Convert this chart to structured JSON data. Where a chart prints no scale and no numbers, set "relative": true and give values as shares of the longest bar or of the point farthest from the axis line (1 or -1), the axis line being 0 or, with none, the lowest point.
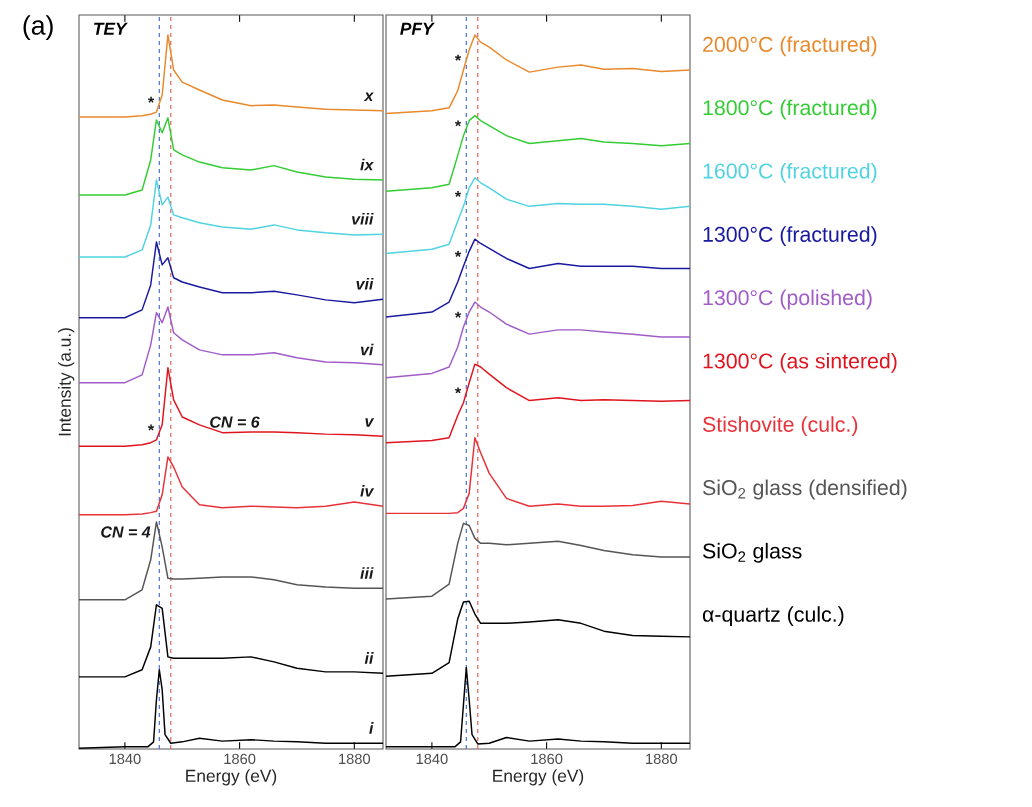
{
  "chart_data": [
    {
      "type": "line",
      "relative": true,
      "title": "TEY",
      "xlabel": "Energy (eV)",
      "ylabel": "Intensity (a.u.)",
      "xlim": [
        1832,
        1885
      ],
      "xticks": [
        1840,
        1860,
        1880
      ],
      "x": [
        1832,
        1840,
        1843,
        1844.5,
        1845.5,
        1846.5,
        1847.5,
        1848.5,
        1850,
        1853,
        1857,
        1862,
        1866,
        1870,
        1875,
        1880,
        1885
      ],
      "series": [
        {
          "name": "x",
          "color": "#e8892b",
          "values": [
            0.885,
            0.885,
            0.887,
            0.889,
            0.892,
            0.916,
            1.0,
            0.951,
            0.934,
            0.923,
            0.909,
            0.901,
            0.902,
            0.899,
            0.896,
            0.895,
            0.894
          ]
        },
        {
          "name": "ix",
          "color": "#33cc33",
          "values": [
            0.776,
            0.776,
            0.783,
            0.825,
            0.881,
            0.863,
            0.884,
            0.839,
            0.832,
            0.822,
            0.814,
            0.811,
            0.817,
            0.808,
            0.801,
            0.798,
            0.797
          ]
        },
        {
          "name": "viii",
          "color": "#4fd3e0",
          "values": [
            0.689,
            0.689,
            0.699,
            0.734,
            0.797,
            0.762,
            0.773,
            0.748,
            0.744,
            0.737,
            0.731,
            0.728,
            0.734,
            0.727,
            0.723,
            0.72,
            0.721
          ]
        },
        {
          "name": "vii",
          "color": "#1a1aa0",
          "values": [
            0.604,
            0.604,
            0.615,
            0.65,
            0.71,
            0.678,
            0.688,
            0.66,
            0.654,
            0.647,
            0.639,
            0.639,
            0.641,
            0.636,
            0.629,
            0.625,
            0.63
          ]
        },
        {
          "name": "vi",
          "color": "#a05cc8",
          "values": [
            0.513,
            0.513,
            0.524,
            0.566,
            0.611,
            0.597,
            0.619,
            0.583,
            0.573,
            0.559,
            0.552,
            0.552,
            0.555,
            0.548,
            0.542,
            0.541,
            0.538
          ]
        },
        {
          "name": "v",
          "color": "#e0141e",
          "values": [
            0.424,
            0.424,
            0.426,
            0.429,
            0.433,
            0.454,
            0.534,
            0.489,
            0.465,
            0.454,
            0.443,
            0.444,
            0.444,
            0.443,
            0.441,
            0.44,
            0.438
          ]
        },
        {
          "name": "iv",
          "color": "#e8323a",
          "values": [
            0.328,
            0.328,
            0.329,
            0.331,
            0.333,
            0.356,
            0.409,
            0.395,
            0.367,
            0.342,
            0.338,
            0.34,
            0.339,
            0.338,
            0.34,
            0.346,
            0.34
          ]
        },
        {
          "name": "iii",
          "color": "#555555",
          "values": [
            0.209,
            0.209,
            0.223,
            0.265,
            0.318,
            0.283,
            0.239,
            0.238,
            0.238,
            0.239,
            0.241,
            0.241,
            0.237,
            0.23,
            0.227,
            0.225,
            0.225
          ]
        },
        {
          "name": "ii",
          "color": "#000000",
          "values": [
            0.101,
            0.101,
            0.111,
            0.143,
            0.202,
            0.197,
            0.129,
            0.127,
            0.127,
            0.127,
            0.127,
            0.129,
            0.122,
            0.113,
            0.108,
            0.108,
            0.106
          ]
        },
        {
          "name": "i",
          "color": "#000000",
          "x": [
            1832,
            1840,
            1844,
            1845,
            1845.5,
            1846,
            1846.5,
            1847,
            1848,
            1850,
            1853,
            1857,
            1862,
            1866,
            1870,
            1875,
            1880,
            1885
          ],
          "values": [
            0.001,
            0.003,
            0.003,
            0.01,
            0.069,
            0.111,
            0.083,
            0.02,
            0.008,
            0.01,
            0.015,
            0.011,
            0.013,
            0.011,
            0.01,
            0.008,
            0.008,
            0.008
          ]
        }
      ],
      "ref_lines": [
        {
          "axis": "x",
          "value": 1846,
          "color": "#4a6fd6",
          "line_style": "dashed"
        },
        {
          "axis": "x",
          "value": 1848,
          "color": "#e0645a",
          "line_style": "dashed"
        }
      ],
      "annotations": [
        "(a)",
        {
          "text": "CN = 6",
          "x": 1864,
          "y": 0.444
        },
        {
          "text": "CN = 4",
          "x": 1845,
          "y": 0.29
        },
        {
          "text": "*",
          "x": 1845.5,
          "y": 0.892
        },
        {
          "text": "*",
          "x": 1845.5,
          "y": 0.433
        }
      ]
    },
    {
      "type": "line",
      "relative": true,
      "title": "PFY",
      "xlabel": "Energy (eV)",
      "xlim": [
        1832,
        1885
      ],
      "xticks": [
        1840,
        1860,
        1880
      ],
      "legend": "right",
      "x": [
        1832,
        1840,
        1843,
        1844.5,
        1845.5,
        1846.5,
        1847.5,
        1848.5,
        1850,
        1853,
        1857,
        1862,
        1866,
        1870,
        1875,
        1880,
        1885
      ],
      "series": [
        {
          "name": "2000°C (fractured)",
          "color": "#e8892b",
          "values": [
            0.89,
            0.894,
            0.898,
            0.922,
            0.951,
            0.979,
            1.0,
            0.99,
            0.983,
            0.965,
            0.948,
            0.955,
            0.958,
            0.952,
            0.953,
            0.949,
            0.951
          ]
        },
        {
          "name": "1800°C (fractured)",
          "color": "#33cc33",
          "values": [
            0.781,
            0.786,
            0.791,
            0.831,
            0.859,
            0.88,
            0.887,
            0.88,
            0.873,
            0.859,
            0.848,
            0.852,
            0.855,
            0.85,
            0.848,
            0.845,
            0.848
          ]
        },
        {
          "name": "1600°C (fractured)",
          "color": "#4fd3e0",
          "values": [
            0.694,
            0.7,
            0.707,
            0.739,
            0.76,
            0.786,
            0.8,
            0.793,
            0.786,
            0.77,
            0.76,
            0.764,
            0.763,
            0.763,
            0.76,
            0.756,
            0.76
          ]
        },
        {
          "name": "1300°C (fractured)",
          "color": "#1a1aa0",
          "values": [
            0.605,
            0.612,
            0.626,
            0.654,
            0.676,
            0.697,
            0.714,
            0.708,
            0.701,
            0.687,
            0.673,
            0.68,
            0.676,
            0.676,
            0.676,
            0.673,
            0.673
          ]
        },
        {
          "name": "1300°C (polished)",
          "color": "#a05cc8",
          "values": [
            0.52,
            0.526,
            0.535,
            0.563,
            0.591,
            0.612,
            0.626,
            0.619,
            0.612,
            0.595,
            0.581,
            0.587,
            0.587,
            0.584,
            0.581,
            0.577,
            0.577
          ]
        },
        {
          "name": "1300°C (as sintered)",
          "color": "#e0141e",
          "values": [
            0.429,
            0.432,
            0.436,
            0.467,
            0.485,
            0.513,
            0.539,
            0.535,
            0.525,
            0.506,
            0.488,
            0.492,
            0.488,
            0.489,
            0.488,
            0.487,
            0.488
          ]
        },
        {
          "name": "Stishovite (culc.)",
          "color": "#e8323a",
          "values": [
            0.33,
            0.33,
            0.33,
            0.331,
            0.337,
            0.358,
            0.436,
            0.415,
            0.386,
            0.351,
            0.34,
            0.343,
            0.34,
            0.34,
            0.341,
            0.347,
            0.343
          ]
        },
        {
          "name": "SiO$_{2}$ glass (densified)",
          "color": "#555555",
          "values": [
            0.21,
            0.214,
            0.231,
            0.288,
            0.316,
            0.313,
            0.295,
            0.288,
            0.288,
            0.286,
            0.288,
            0.291,
            0.285,
            0.278,
            0.272,
            0.269,
            0.269
          ]
        },
        {
          "name": "SiO$_{2}$ glass",
          "color": "#000000",
          "values": [
            0.102,
            0.106,
            0.121,
            0.182,
            0.206,
            0.207,
            0.189,
            0.176,
            0.176,
            0.176,
            0.178,
            0.181,
            0.176,
            0.165,
            0.159,
            0.158,
            0.157
          ]
        },
        {
          "name": "α-quartz (culc.)",
          "color": "#000000",
          "x": [
            1832,
            1840,
            1844,
            1845,
            1845.5,
            1846,
            1846.5,
            1847,
            1848,
            1850,
            1853,
            1857,
            1862,
            1866,
            1870,
            1875,
            1880,
            1885
          ],
          "values": [
            0.003,
            0.003,
            0.003,
            0.01,
            0.062,
            0.114,
            0.069,
            0.02,
            0.007,
            0.008,
            0.016,
            0.011,
            0.014,
            0.011,
            0.01,
            0.008,
            0.008,
            0.008
          ]
        }
      ],
      "ref_lines": [
        {
          "axis": "x",
          "value": 1846,
          "color": "#4a6fd6",
          "line_style": "dashed"
        },
        {
          "axis": "x",
          "value": 1848,
          "color": "#e0645a",
          "line_style": "dashed"
        }
      ],
      "annotations": [
        {
          "text": "*",
          "x": 1845.5,
          "y": 0.951
        },
        {
          "text": "*",
          "x": 1845.5,
          "y": 0.859
        },
        {
          "text": "*",
          "x": 1845.5,
          "y": 0.76
        },
        {
          "text": "*",
          "x": 1845.5,
          "y": 0.676
        },
        {
          "text": "*",
          "x": 1845.5,
          "y": 0.591
        },
        {
          "text": "*",
          "x": 1845.5,
          "y": 0.485
        }
      ]
    }
  ]
}
